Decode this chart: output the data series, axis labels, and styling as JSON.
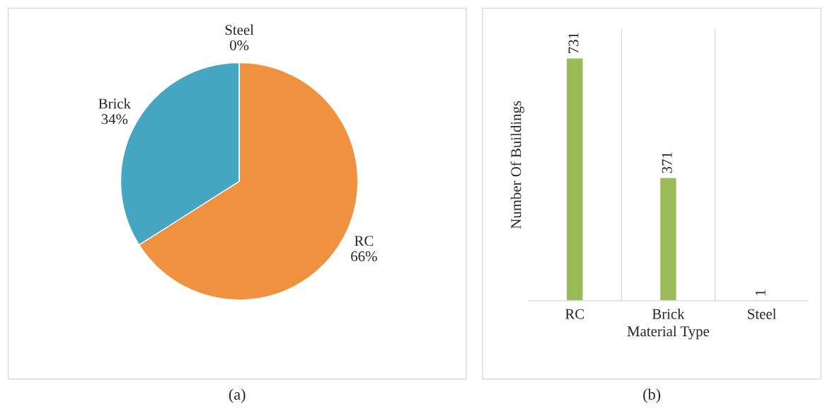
{
  "chart_data": [
    {
      "type": "pie",
      "categories": [
        "RC",
        "Brick",
        "Steel"
      ],
      "values": [
        66,
        34,
        0
      ],
      "colors": [
        "#f0913f",
        "#46a6c2",
        "#a5a5a5"
      ],
      "value_labels": [
        "66%",
        "34%",
        "0%"
      ],
      "annotations": [
        "(a)"
      ]
    },
    {
      "type": "bar",
      "categories": [
        "RC",
        "Brick",
        "Steel"
      ],
      "values": [
        731,
        371,
        1
      ],
      "color": "#9bbb59",
      "data_labels": true,
      "xlabel": "Material Type",
      "ylabel": "Number Of Buildings",
      "grid": "x",
      "tick_labels": "x",
      "annotations": [
        "(b)"
      ]
    }
  ]
}
